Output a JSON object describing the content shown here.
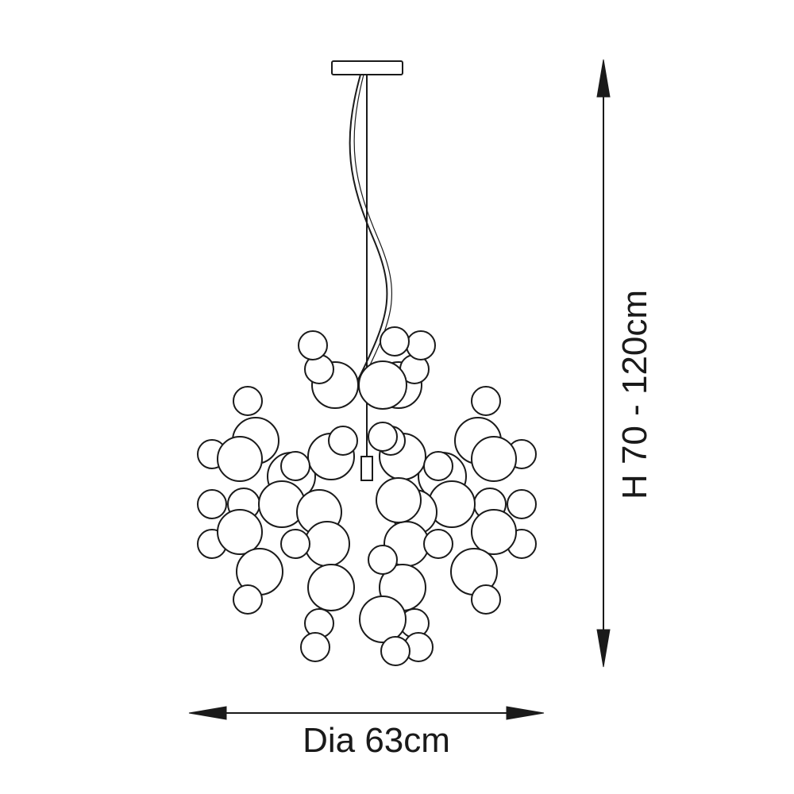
{
  "dimensions": {
    "height_label": "H 70 - 120cm",
    "diameter_label": "Dia 63cm"
  },
  "colors": {
    "line": "#1a1a1a",
    "background": "#ffffff"
  }
}
